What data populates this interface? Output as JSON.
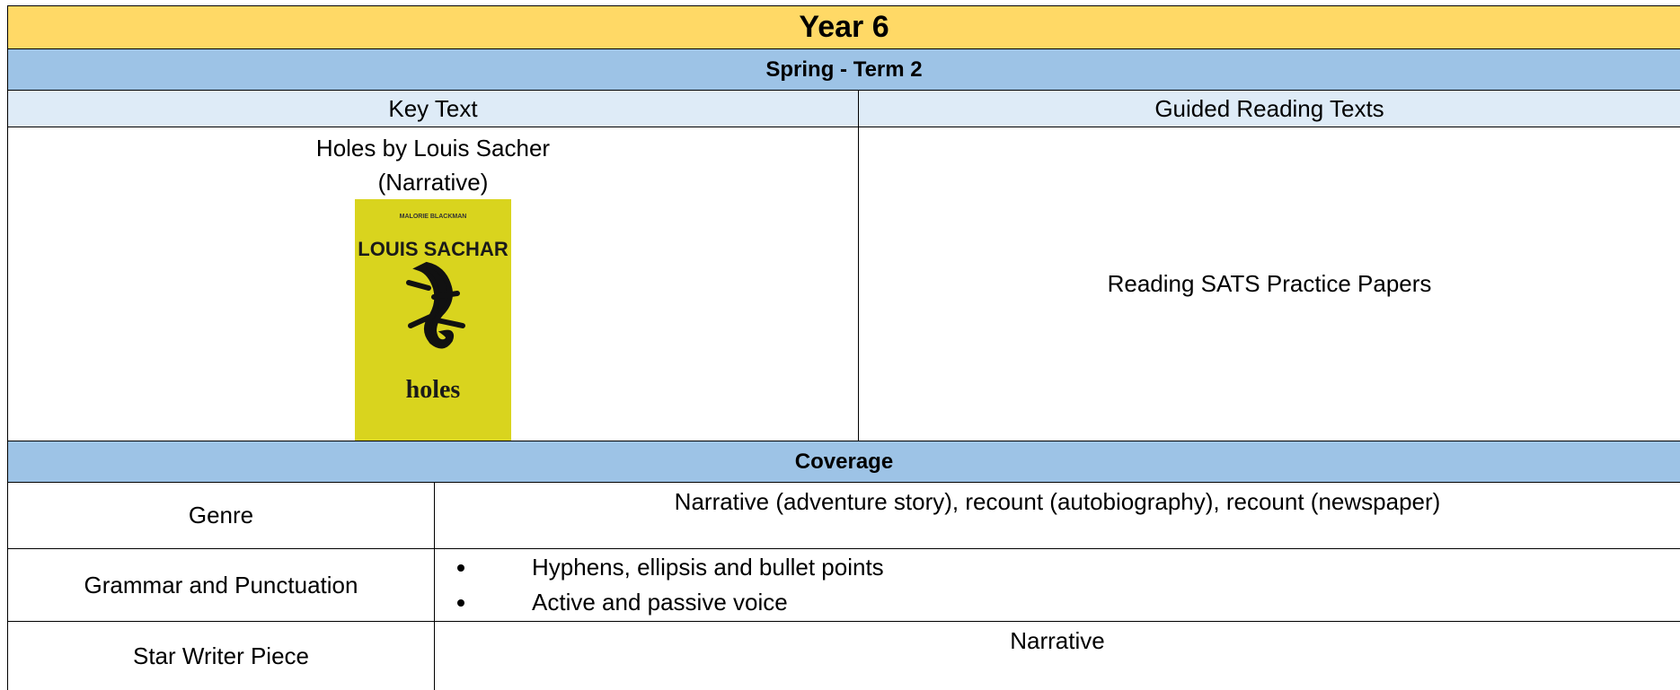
{
  "header": {
    "title": "Year 6",
    "term": "Spring - Term 2"
  },
  "columns": [
    "Key Text",
    "Guided Reading Texts"
  ],
  "key_text": {
    "title": "Holes by Louis Sacher",
    "genre": "(Narrative)",
    "cover": {
      "quote": "MALORIE BLACKMAN",
      "author": "LOUIS SACHAR",
      "title": "holes"
    }
  },
  "guided_reading": "Reading SATS Practice Papers",
  "coverage": {
    "title": "Coverage",
    "rows": [
      {
        "label": "Genre",
        "content": "Narrative (adventure story), recount (autobiography), recount (newspaper)"
      },
      {
        "label": "Grammar and Punctuation",
        "bullets": [
          "Hyphens, ellipsis and bullet points",
          "Active and passive voice"
        ]
      },
      {
        "label": "Star Writer Piece",
        "content": "Narrative"
      }
    ]
  }
}
